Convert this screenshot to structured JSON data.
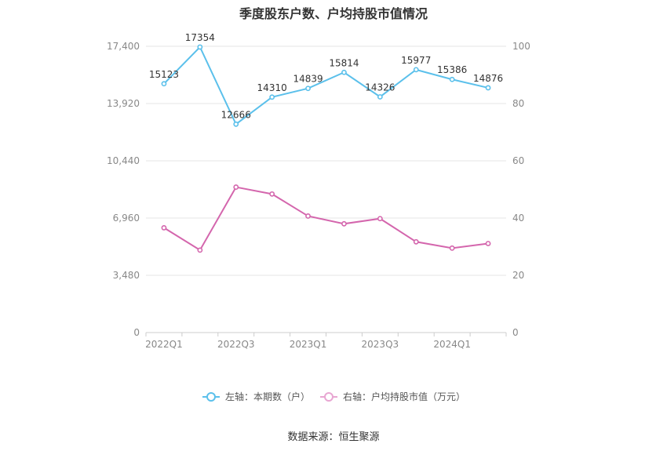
{
  "chart_data": {
    "type": "line",
    "title": "季度股东户数、户均持股市值情况",
    "categories": [
      "2022Q1",
      "2022Q2",
      "2022Q3",
      "2022Q4",
      "2023Q1",
      "2023Q2",
      "2023Q3",
      "2023Q4",
      "2024Q1",
      "2024Q2"
    ],
    "x_tick_labels": [
      "2022Q1",
      "2022Q3",
      "2023Q1",
      "2023Q3",
      "2024Q1"
    ],
    "left_axis": {
      "ticks": [
        "0",
        "3,480",
        "6,960",
        "10,440",
        "13,920",
        "17,400"
      ],
      "ylim": [
        0,
        17400
      ]
    },
    "right_axis": {
      "ticks": [
        "0",
        "20",
        "40",
        "60",
        "80",
        "100"
      ],
      "ylim": [
        0,
        100
      ]
    },
    "series": [
      {
        "name": "左轴：本期数（户）",
        "axis": "left",
        "color": "#5bc0eb",
        "values": [
          15123,
          17354,
          12666,
          14310,
          14839,
          15814,
          14326,
          15977,
          15386,
          14876
        ]
      },
      {
        "name": "右轴：户均持股市值（万元）",
        "axis": "right",
        "color": "#d466ad",
        "values": [
          36.6,
          28.8,
          50.8,
          48.4,
          40.7,
          38.0,
          39.8,
          31.7,
          29.5,
          31.1
        ]
      }
    ],
    "grid": true,
    "legend": "bottom"
  },
  "source": "数据来源：恒生聚源"
}
